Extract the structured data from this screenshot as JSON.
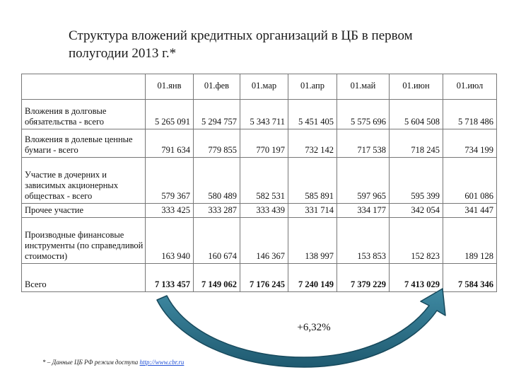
{
  "title": "Структура вложений кредитных организаций в ЦБ в первом полугодии 2013 г.*",
  "columns": [
    "01.янв",
    "01.фев",
    "01.мар",
    "01.апр",
    "01.май",
    "01.июн",
    "01.июл"
  ],
  "rows": [
    {
      "label": "Вложения в долговые обязательства - всего",
      "values": [
        "5 265 091",
        "5 294 757",
        "5 343 711",
        "5 451 405",
        "5 575 696",
        "5 604 508",
        "5 718 486"
      ]
    },
    {
      "label": "Вложения в долевые ценные бумаги - всего",
      "values": [
        "791 634",
        "779 855",
        "770 197",
        "732 142",
        "717 538",
        "718 245",
        "734 199"
      ]
    },
    {
      "label": "Участие в дочерних и зависимых акционерных обществах - всего",
      "values": [
        "579 367",
        "580 489",
        "582 531",
        "585 891",
        "597 965",
        "595 399",
        "601 086"
      ]
    },
    {
      "label": "Прочее участие",
      "values": [
        "333 425",
        "333 287",
        "333 439",
        "331 714",
        "334 177",
        "342 054",
        "341 447"
      ]
    },
    {
      "label": "Производные финансовые инструменты (по справедливой стоимости)",
      "values": [
        "163 940",
        "160 674",
        "146 367",
        "138 997",
        "153 853",
        "152 823",
        "189 128"
      ]
    },
    {
      "label": "Всего",
      "values": [
        "7 133 457",
        "7 149 062",
        "7 176 245",
        "7 240 149",
        "7 379 229",
        "7 413 029",
        "7 584 346"
      ]
    }
  ],
  "growth_label": "+6,32%",
  "footnote": {
    "text": "* – Данные ЦБ РФ режим доступа",
    "link": "http://www.cbr.ru"
  },
  "colors": {
    "arrow_fill": "#2d6d84",
    "arrow_edge": "#17495c",
    "border": "#777777",
    "link": "#1f4fd6"
  }
}
